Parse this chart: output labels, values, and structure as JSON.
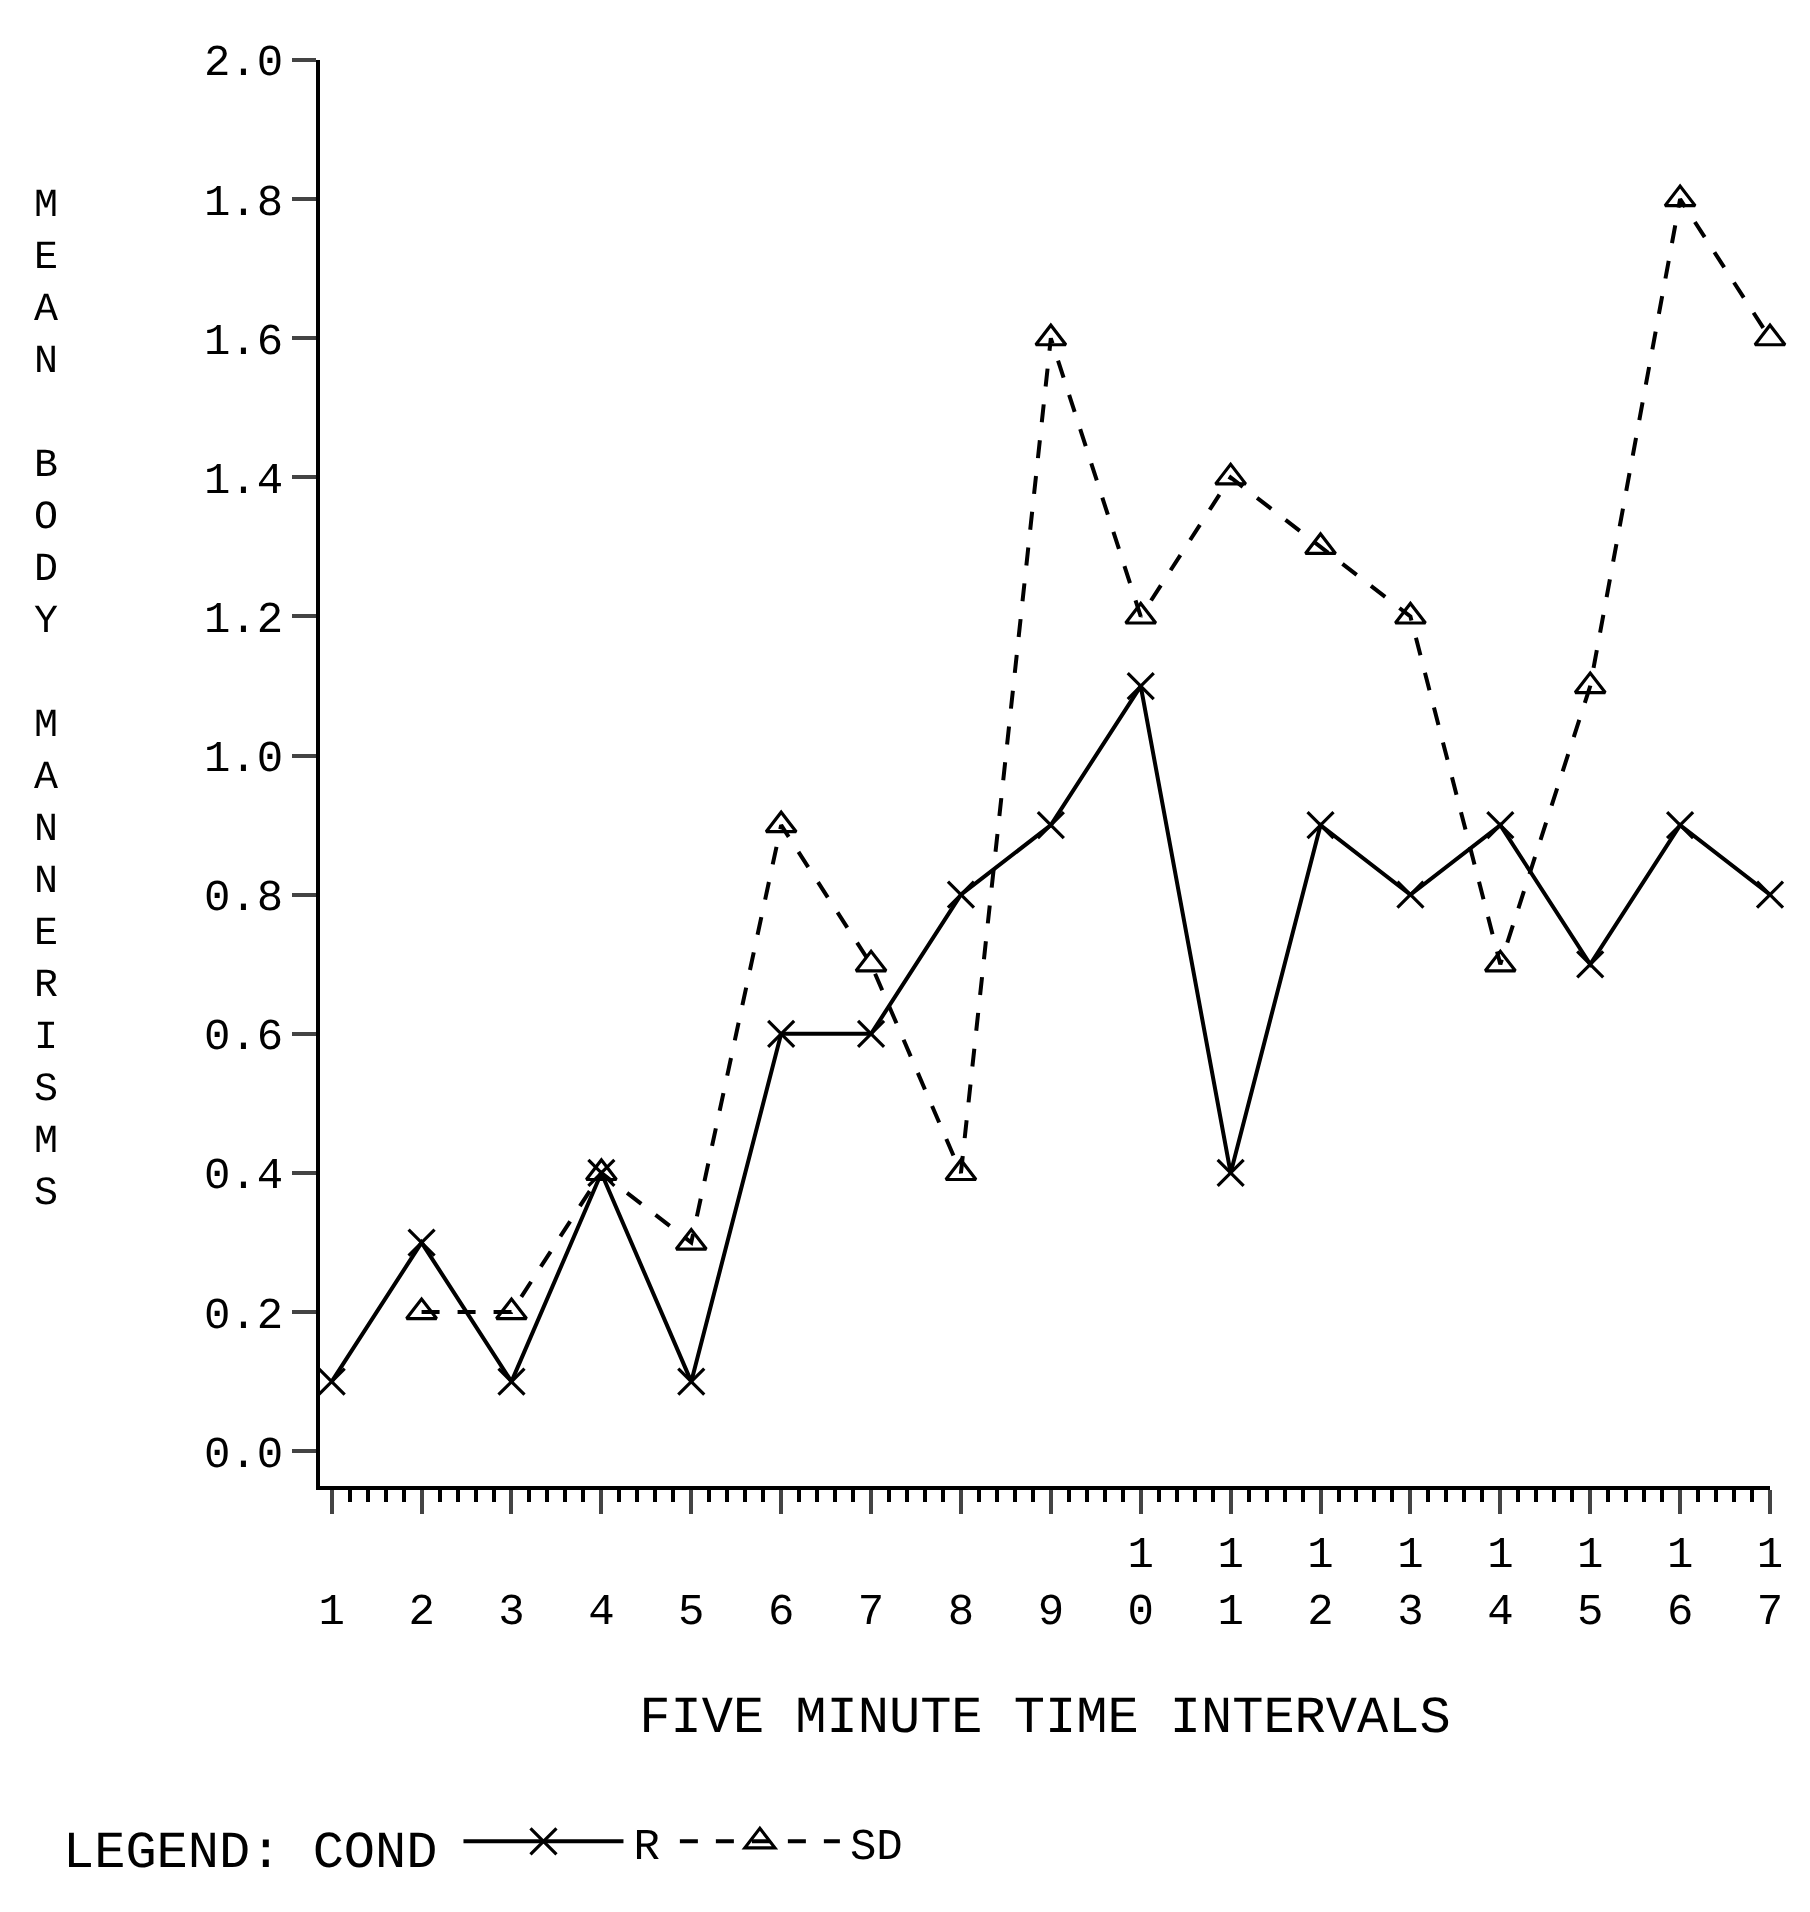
{
  "chart_data": {
    "type": "line",
    "xlabel": "FIVE MINUTE TIME INTERVALS",
    "ylabel": "MEAN BODY MANNERISMS",
    "legend_title": "LEGEND: COND",
    "x": [
      1,
      2,
      3,
      4,
      5,
      6,
      7,
      8,
      9,
      10,
      11,
      12,
      13,
      14,
      15,
      16,
      17
    ],
    "series": [
      {
        "name": "R",
        "color": "#000000",
        "marker": "cross",
        "line_style": "solid",
        "values": [
          0.1,
          0.3,
          0.1,
          0.4,
          0.1,
          0.6,
          0.6,
          0.8,
          0.9,
          1.1,
          0.4,
          0.9,
          0.8,
          0.9,
          0.7,
          0.9,
          0.8
        ]
      },
      {
        "name": "SD",
        "color": "#000000",
        "marker": "triangle",
        "line_style": "dashed",
        "values": [
          null,
          0.2,
          0.2,
          0.4,
          0.3,
          0.9,
          0.7,
          0.4,
          1.6,
          1.2,
          1.4,
          1.3,
          1.2,
          0.7,
          1.1,
          1.8,
          1.6
        ]
      }
    ],
    "xlim": [
      0.87,
      17
    ],
    "xticks": [
      1,
      2,
      3,
      4,
      5,
      6,
      7,
      8,
      9,
      10,
      11,
      12,
      13,
      14,
      15,
      16,
      17
    ],
    "ylim": [
      -0.05,
      2.0
    ],
    "yticks": [
      {
        "value": 0,
        "label": "0.0"
      },
      {
        "value": 0.2,
        "label": "0.2"
      },
      {
        "value": 0.4,
        "label": "0.4"
      },
      {
        "value": 0.6,
        "label": "0.6"
      },
      {
        "value": 0.8,
        "label": "0.8"
      },
      {
        "value": 1.0,
        "label": "1.0"
      },
      {
        "value": 1.2,
        "label": "1.2"
      },
      {
        "value": 1.4,
        "label": "1.4"
      },
      {
        "value": 1.6,
        "label": "1.6"
      },
      {
        "value": 1.8,
        "label": "1.8"
      },
      {
        "value": 2.0,
        "label": "2.0"
      }
    ],
    "grid": false,
    "legend": "bottom"
  }
}
